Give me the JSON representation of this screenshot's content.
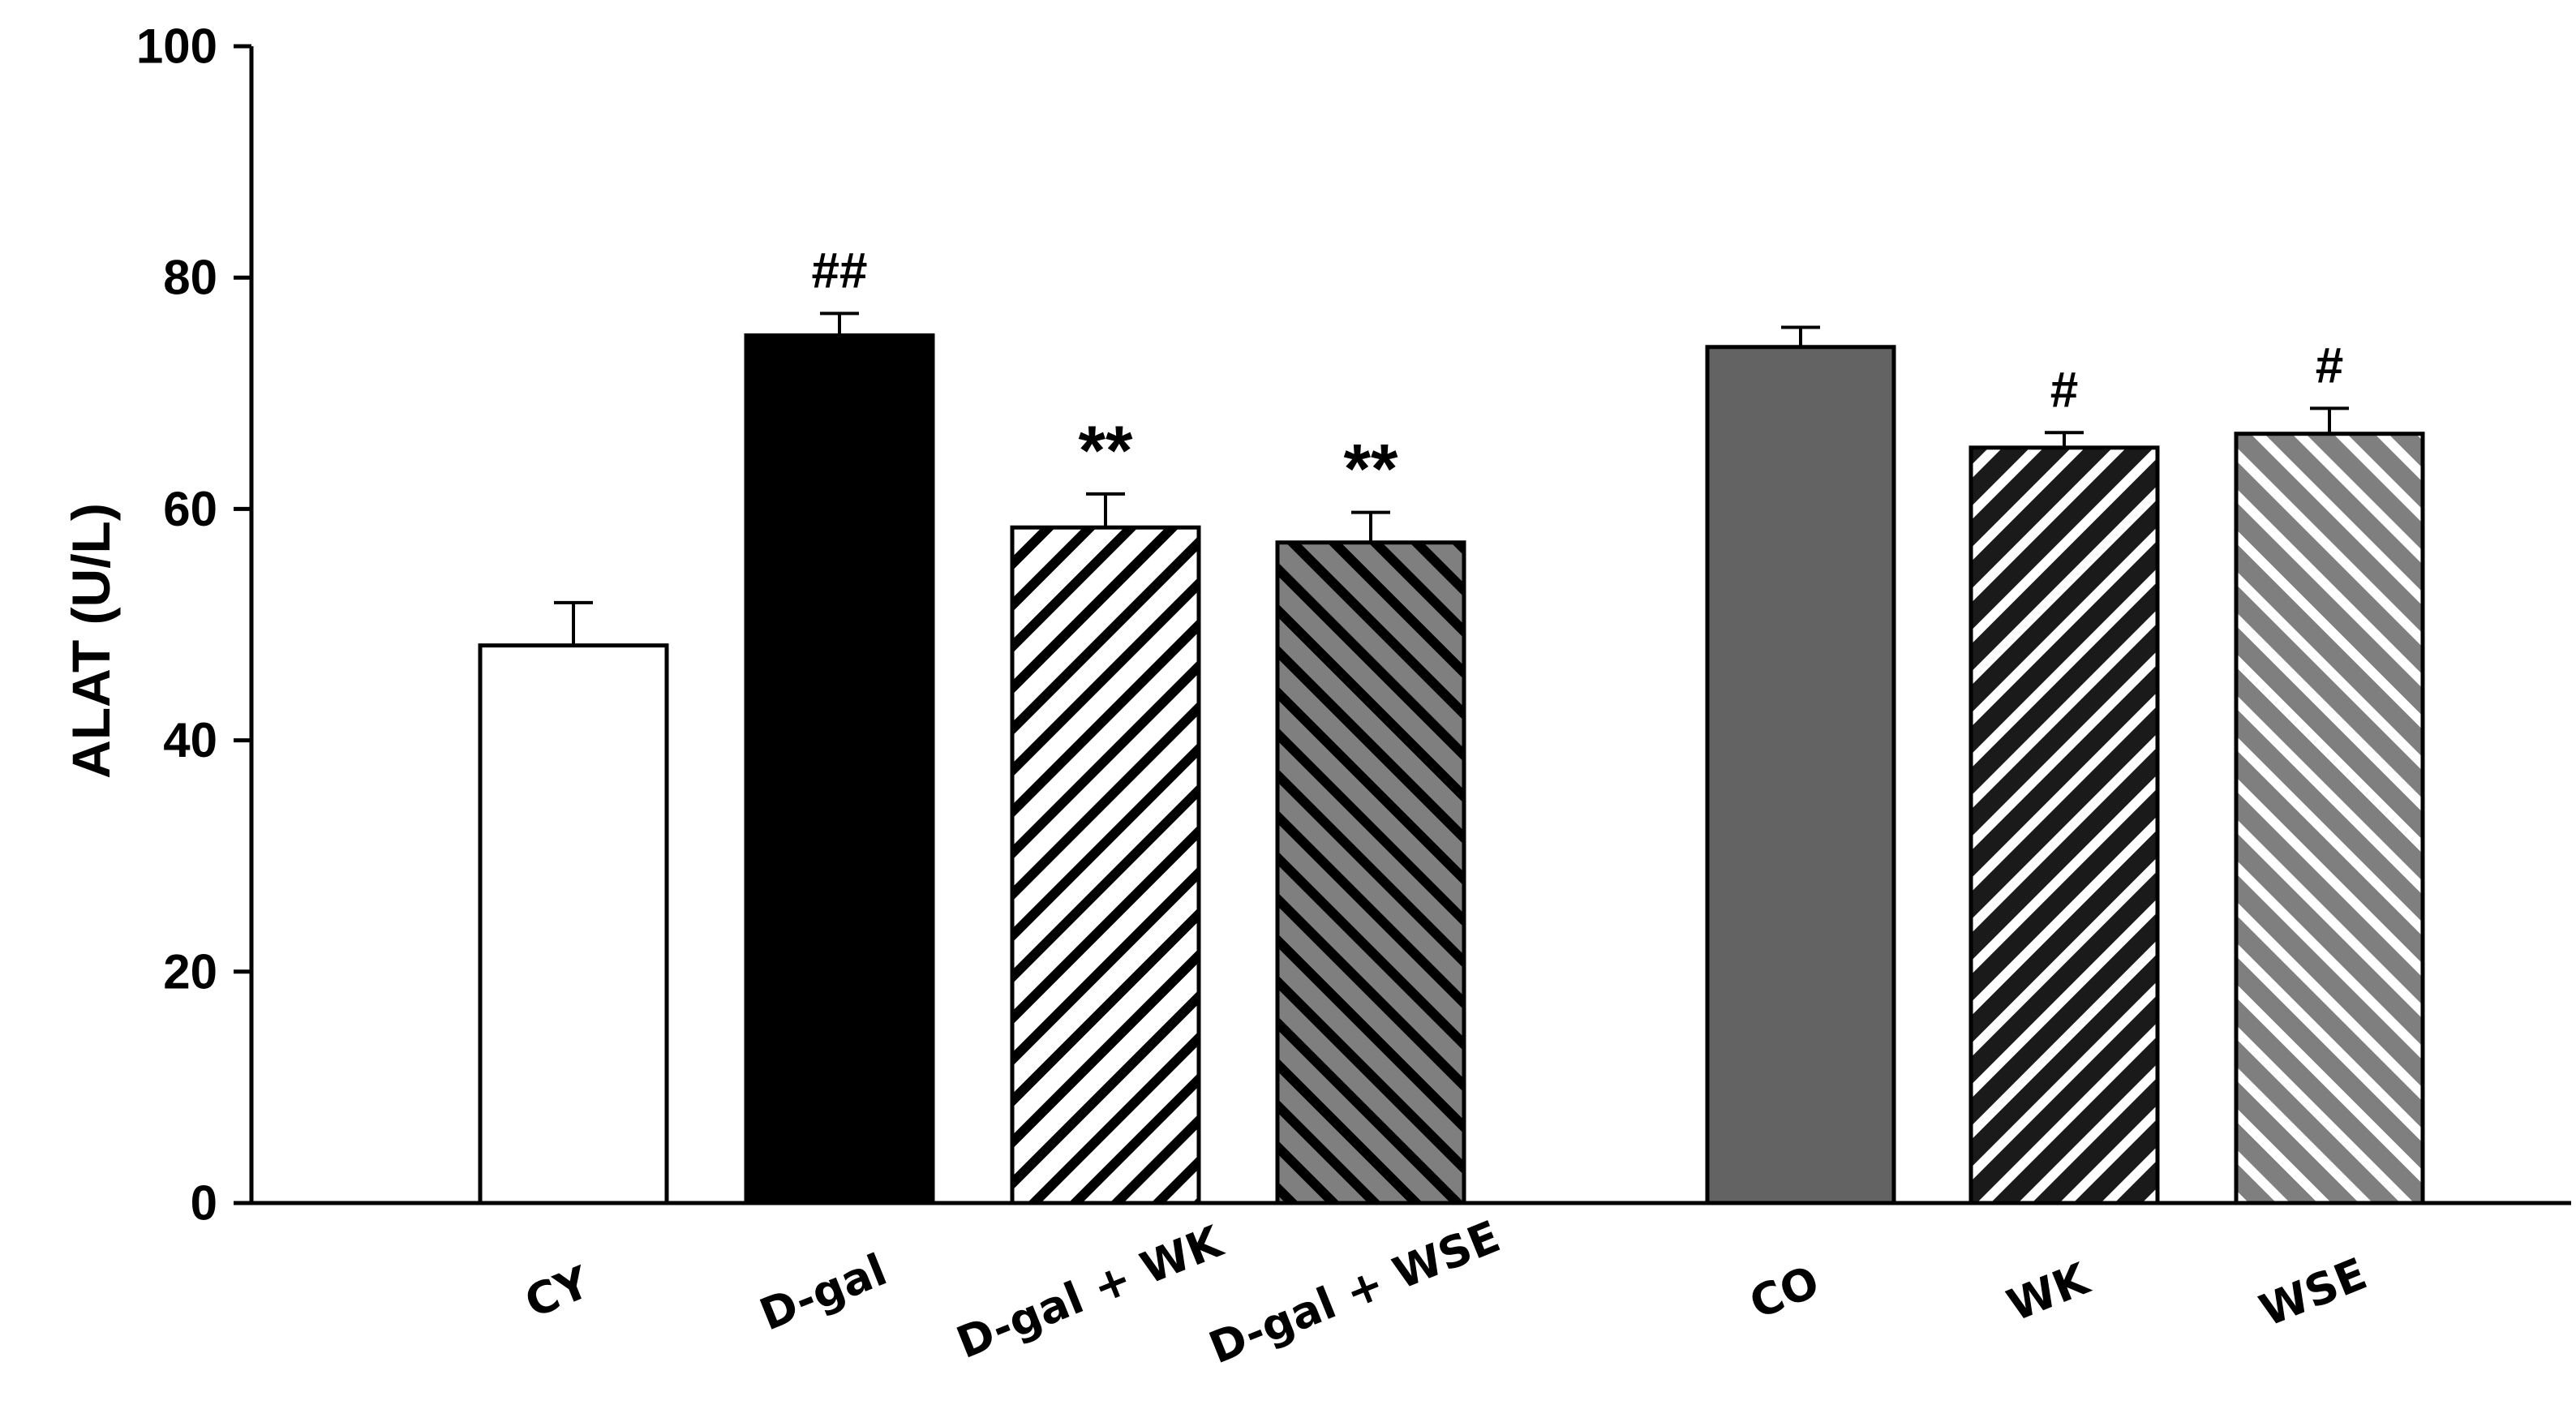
{
  "chart_data": {
    "type": "bar",
    "title": "",
    "xlabel": "",
    "ylabel": "ALAT (U/L)",
    "ylim": [
      0,
      100
    ],
    "yticks": [
      0,
      20,
      40,
      60,
      80,
      100
    ],
    "grid": false,
    "legend": "none",
    "categories": [
      "CY",
      "D-gal",
      "D-gal + WK",
      "D-gal + WSE",
      "CO",
      "WK",
      "WSE"
    ],
    "values": [
      48.2,
      75.0,
      58.4,
      57.1,
      74.0,
      65.3,
      66.5
    ],
    "errors": [
      3.7,
      1.9,
      2.9,
      2.6,
      1.7,
      1.3,
      2.2
    ],
    "annotations": [
      "",
      "##",
      "**",
      "**",
      "",
      "#",
      "#"
    ],
    "bar_styles": [
      {
        "fill": "#ffffff",
        "pattern": "none"
      },
      {
        "fill": "#000000",
        "pattern": "none"
      },
      {
        "fill": "#ffffff",
        "pattern": "diagonal-up",
        "stripe": "#000000"
      },
      {
        "fill": "#7f7f7f",
        "pattern": "diagonal-down",
        "stripe": "#000000"
      },
      {
        "fill": "#636363",
        "pattern": "none"
      },
      {
        "fill": "#1a1a1a",
        "pattern": "diagonal-up",
        "stripe": "#ffffff"
      },
      {
        "fill": "#7f7f7f",
        "pattern": "diagonal-down",
        "stripe": "#ffffff"
      }
    ]
  }
}
